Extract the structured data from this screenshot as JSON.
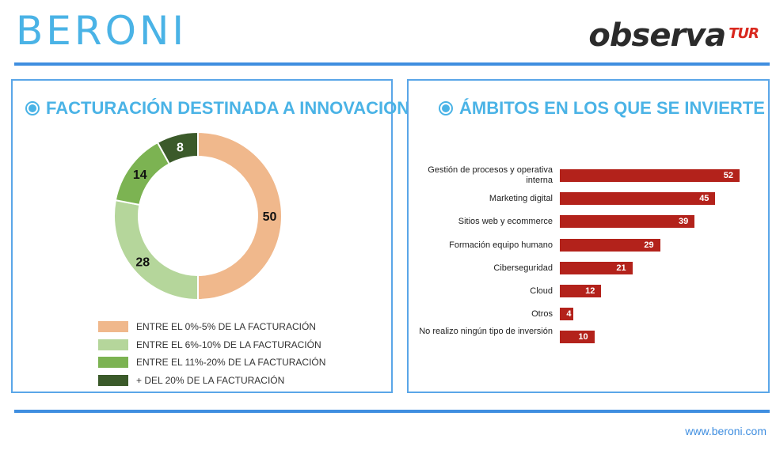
{
  "header": {
    "logo_left": "BERONI",
    "logo_right": "observa",
    "logo_right_sup": "TUR"
  },
  "footer": {
    "url": "www.beroni.com"
  },
  "chart_data": [
    {
      "type": "pie",
      "title": "FACTURACIÓN DESTINADA A INNOVACION",
      "categories": [
        "ENTRE EL 0%-5% DE LA FACTURACIÓN",
        "ENTRE EL 6%-10% DE LA FACTURACIÓN",
        "ENTRE EL 11%-20% DE LA FACTURACIÓN",
        "+ DEL 20% DE LA FACTURACIÓN"
      ],
      "values": [
        50,
        28,
        14,
        8
      ],
      "colors": [
        "#f0b88c",
        "#b5d69b",
        "#7cb352",
        "#3b5a2a"
      ],
      "legend": "bottom",
      "donut": true
    },
    {
      "type": "bar",
      "orientation": "horizontal",
      "title": "ÁMBITOS EN LOS QUE SE INVIERTE",
      "categories": [
        "Gestión de procesos y operativa interna",
        "Marketing digital",
        "Sitios web y ecommerce",
        "Formación equipo humano",
        "Ciberseguridad",
        "Cloud",
        "Otros",
        "No realizo ningún tipo de inversión"
      ],
      "values": [
        52,
        45,
        39,
        29,
        21,
        12,
        4,
        10
      ],
      "color": "#b3221b",
      "xlim": [
        0,
        52
      ]
    }
  ]
}
